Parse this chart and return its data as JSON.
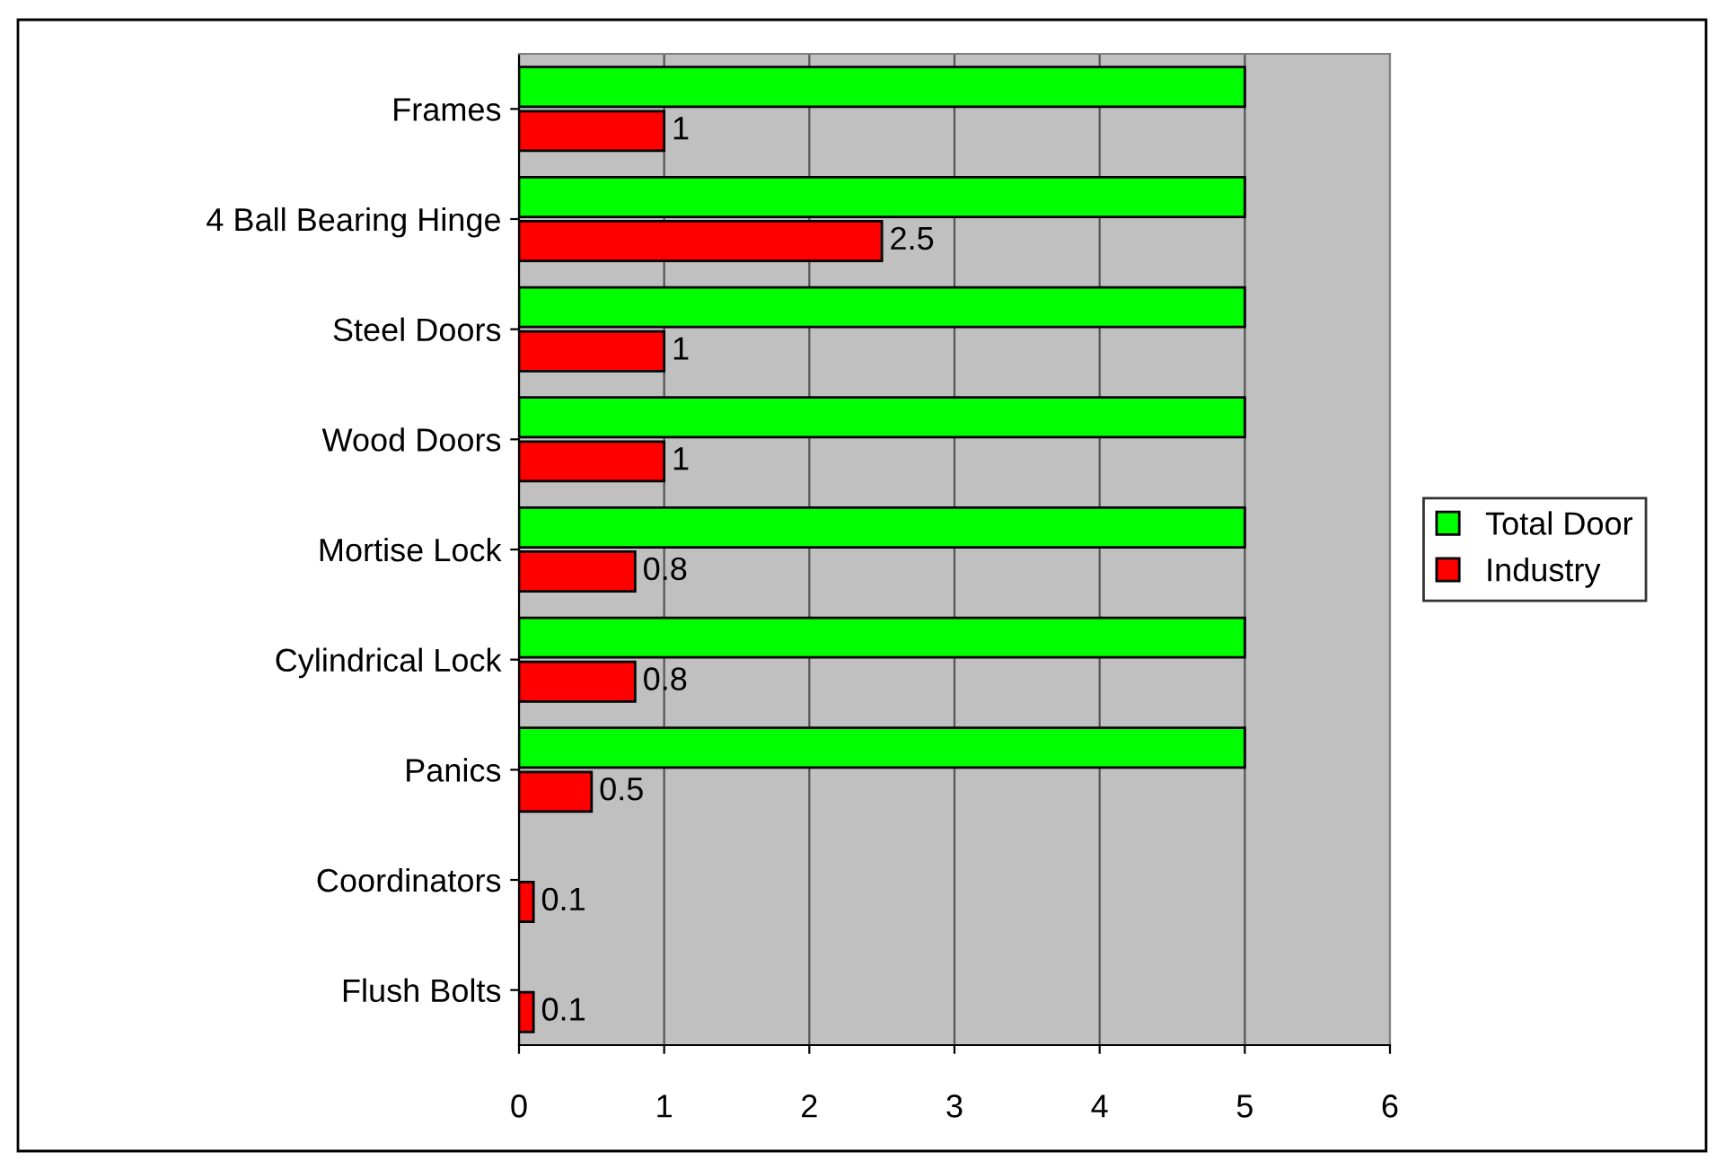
{
  "chart_data": {
    "type": "bar",
    "orientation": "horizontal",
    "categories": [
      "Frames",
      "4 Ball Bearing Hinge",
      "Steel Doors",
      "Wood Doors",
      "Mortise Lock",
      "Cylindrical Lock",
      "Panics",
      "Coordinators",
      "Flush Bolts"
    ],
    "series": [
      {
        "name": "Total Door",
        "color": "#00ff00",
        "values": [
          5,
          5,
          5,
          5,
          5,
          5,
          5,
          null,
          null
        ]
      },
      {
        "name": "Industry",
        "color": "#ff0000",
        "values": [
          1,
          2.5,
          1,
          1,
          0.8,
          0.8,
          0.5,
          0.1,
          0.1
        ],
        "value_labels": [
          "1",
          "2.5",
          "1",
          "1",
          "0.8",
          "0.8",
          "0.5",
          "0.1",
          "0.1"
        ]
      }
    ],
    "xlim": [
      0,
      6
    ],
    "xticks": [
      0,
      1,
      2,
      3,
      4,
      5,
      6
    ],
    "grid": "x",
    "legend": "right"
  }
}
